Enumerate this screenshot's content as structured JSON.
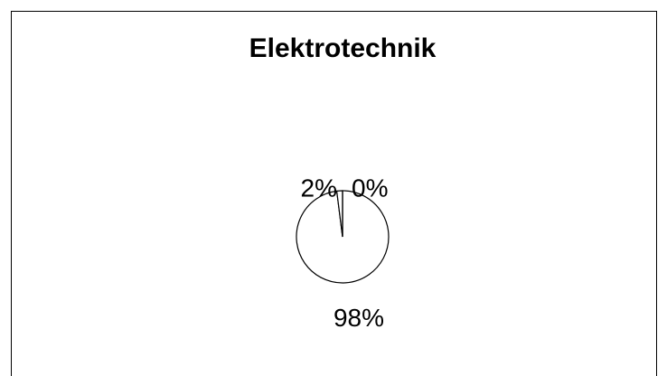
{
  "chart_data": {
    "type": "pie",
    "title": "Elektrotechnik",
    "values": [
      98,
      2,
      0
    ],
    "value_labels": [
      "98%",
      "2%",
      "0%"
    ],
    "color": "#ffffff",
    "edge_color": "#000000",
    "start": "top",
    "direction": "clockwise"
  }
}
